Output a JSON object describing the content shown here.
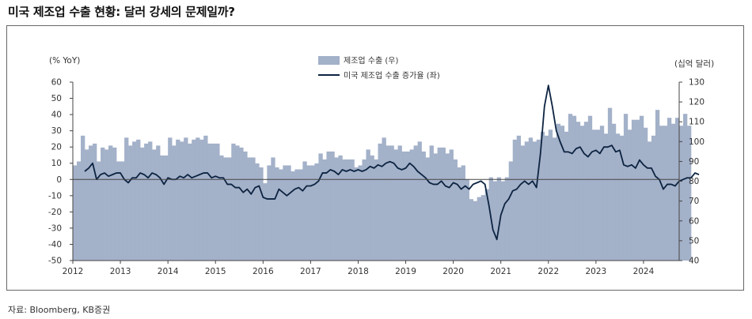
{
  "title": "미국 제조업 수출 현황: 달러 강세의 문제일까?",
  "source": "자료: Bloomberg, KB증권",
  "chart_data": {
    "type": "bar+line",
    "left_unit": "(% YoY)",
    "right_unit": "(십억 달러)",
    "left_ylim": [
      -50,
      60
    ],
    "left_ticks": [
      60,
      50,
      40,
      30,
      20,
      10,
      0,
      -10,
      -20,
      -30,
      -40,
      -50
    ],
    "right_ylim": [
      40,
      130
    ],
    "right_ticks": [
      130,
      120,
      110,
      100,
      90,
      80,
      70,
      60,
      50,
      40
    ],
    "x_start": 2012.0,
    "x_end": 2024.75,
    "x_ticks": [
      "2012",
      "2013",
      "2014",
      "2015",
      "2016",
      "2017",
      "2018",
      "2019",
      "2020",
      "2021",
      "2022",
      "2023",
      "2024"
    ],
    "legend": [
      {
        "name": "제조업 수출 (우)",
        "kind": "bar",
        "color": "#a3b1c9"
      },
      {
        "name": "미국 제조업 수출 증가율 (좌)",
        "kind": "line",
        "color": "#0c2340"
      }
    ],
    "bar_series": {
      "name": "제조업 수출 (우)",
      "color": "#a3b1c9",
      "values": [
        88,
        90,
        103,
        96,
        98,
        99,
        90,
        97,
        96,
        98,
        97,
        90,
        90,
        102,
        98,
        100,
        101,
        97,
        99,
        100,
        96,
        98,
        93,
        93,
        102,
        98,
        101,
        100,
        102,
        99,
        101,
        102,
        101,
        103,
        99,
        99,
        99,
        93,
        92,
        92,
        99,
        98,
        97,
        95,
        92,
        92,
        89,
        87,
        79,
        88,
        92,
        87,
        86,
        88,
        88,
        85,
        86,
        86,
        90,
        88,
        88,
        89,
        94,
        91,
        95,
        95,
        92,
        93,
        91,
        91,
        91,
        87,
        88,
        91,
        96,
        93,
        91,
        99,
        102,
        98,
        98,
        96,
        98,
        95,
        95,
        96,
        98,
        100,
        95,
        92,
        98,
        94,
        97,
        97,
        94,
        96,
        91,
        87,
        88,
        81,
        71,
        70,
        72,
        73,
        76,
        82,
        80,
        82,
        80,
        82,
        90,
        101,
        103,
        98,
        100,
        102,
        100,
        101,
        105,
        103,
        106,
        102,
        109,
        108,
        105,
        114,
        113,
        110,
        108,
        110,
        113,
        106,
        106,
        108,
        104,
        117,
        109,
        104,
        103,
        114,
        106,
        111,
        111,
        113,
        107,
        100,
        103,
        116,
        108,
        108,
        112,
        109,
        112,
        108,
        114,
        108
      ]
    },
    "line_series": {
      "name": "미국 제조업 수출 증가율 (좌)",
      "color": "#0c2340",
      "x_start": 2012.25,
      "values": [
        5,
        7,
        10,
        0,
        3,
        4,
        2,
        3,
        4,
        4,
        0,
        -2,
        1,
        1,
        4,
        3,
        1,
        4,
        3,
        1,
        -3,
        1,
        0,
        0,
        2,
        1,
        3,
        1,
        2,
        3,
        4,
        4,
        1,
        2,
        1,
        1,
        -3,
        -3,
        -5,
        -5,
        -8,
        -6,
        -9,
        -5,
        -4,
        -11,
        -12,
        -12,
        -12,
        -6,
        -8,
        -10,
        -8,
        -6,
        -5,
        -7,
        -4,
        -4,
        -3,
        -1,
        4,
        4,
        6,
        5,
        3,
        6,
        5,
        6,
        5,
        6,
        5,
        6,
        8,
        7,
        9,
        8,
        10,
        11,
        10,
        7,
        6,
        7,
        10,
        8,
        5,
        3,
        1,
        -2,
        -3,
        -3,
        -1,
        -4,
        -5,
        -2,
        -3,
        -6,
        -4,
        -6,
        -3,
        -2,
        -1,
        -3,
        -16,
        -31,
        -37,
        -22,
        -15,
        -12,
        -7,
        -6,
        -3,
        -1,
        -3,
        -1,
        -5,
        16,
        45,
        58,
        45,
        30,
        23,
        17,
        17,
        16,
        19,
        20,
        16,
        14,
        17,
        18,
        16,
        20,
        20,
        21,
        17,
        18,
        9,
        8,
        9,
        7,
        12,
        9,
        7,
        7,
        2,
        0,
        -6,
        -3,
        -3,
        -4,
        -1,
        0,
        1,
        1,
        4,
        3
      ]
    }
  }
}
